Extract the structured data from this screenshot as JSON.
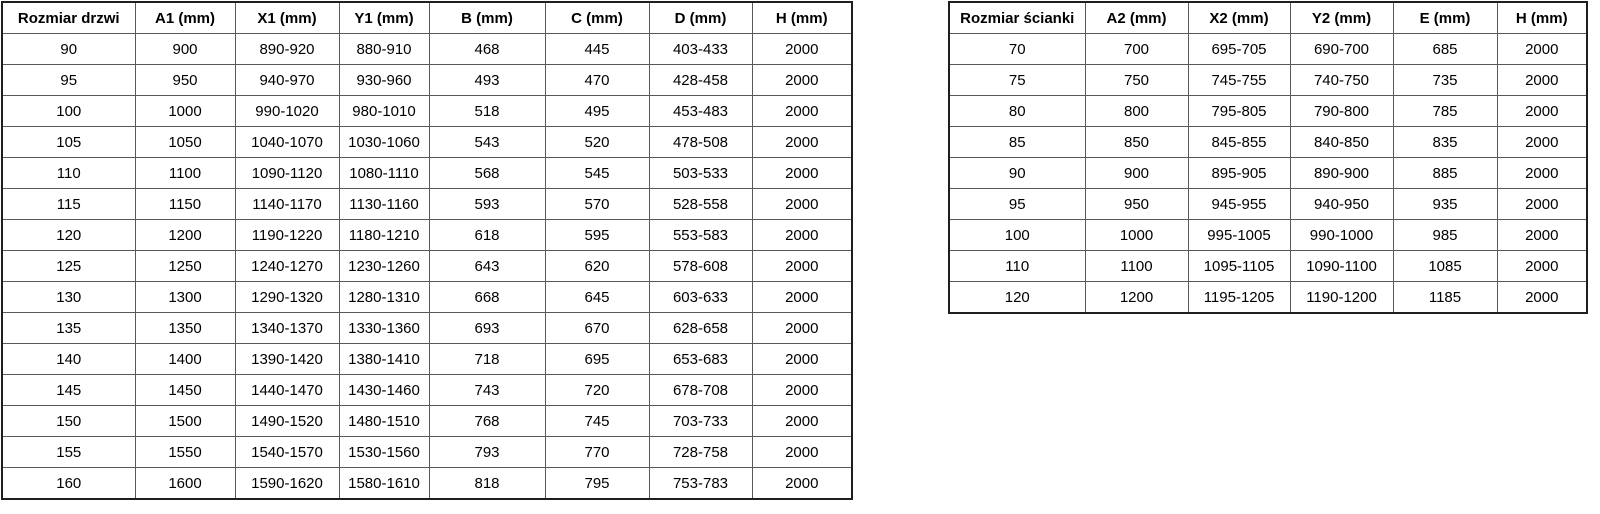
{
  "chart_data": [
    {
      "type": "table",
      "name": "door-sizes",
      "columns": [
        "Rozmiar drzwi",
        "A1 (mm)",
        "X1 (mm)",
        "Y1 (mm)",
        "B (mm)",
        "C (mm)",
        "D (mm)",
        "H (mm)"
      ],
      "rows": [
        [
          "90",
          "900",
          "890-920",
          "880-910",
          "468",
          "445",
          "403-433",
          "2000"
        ],
        [
          "95",
          "950",
          "940-970",
          "930-960",
          "493",
          "470",
          "428-458",
          "2000"
        ],
        [
          "100",
          "1000",
          "990-1020",
          "980-1010",
          "518",
          "495",
          "453-483",
          "2000"
        ],
        [
          "105",
          "1050",
          "1040-1070",
          "1030-1060",
          "543",
          "520",
          "478-508",
          "2000"
        ],
        [
          "110",
          "1100",
          "1090-1120",
          "1080-1110",
          "568",
          "545",
          "503-533",
          "2000"
        ],
        [
          "115",
          "1150",
          "1140-1170",
          "1130-1160",
          "593",
          "570",
          "528-558",
          "2000"
        ],
        [
          "120",
          "1200",
          "1190-1220",
          "1180-1210",
          "618",
          "595",
          "553-583",
          "2000"
        ],
        [
          "125",
          "1250",
          "1240-1270",
          "1230-1260",
          "643",
          "620",
          "578-608",
          "2000"
        ],
        [
          "130",
          "1300",
          "1290-1320",
          "1280-1310",
          "668",
          "645",
          "603-633",
          "2000"
        ],
        [
          "135",
          "1350",
          "1340-1370",
          "1330-1360",
          "693",
          "670",
          "628-658",
          "2000"
        ],
        [
          "140",
          "1400",
          "1390-1420",
          "1380-1410",
          "718",
          "695",
          "653-683",
          "2000"
        ],
        [
          "145",
          "1450",
          "1440-1470",
          "1430-1460",
          "743",
          "720",
          "678-708",
          "2000"
        ],
        [
          "150",
          "1500",
          "1490-1520",
          "1480-1510",
          "768",
          "745",
          "703-733",
          "2000"
        ],
        [
          "155",
          "1550",
          "1540-1570",
          "1530-1560",
          "793",
          "770",
          "728-758",
          "2000"
        ],
        [
          "160",
          "1600",
          "1590-1620",
          "1580-1610",
          "818",
          "795",
          "753-783",
          "2000"
        ]
      ]
    },
    {
      "type": "table",
      "name": "wall-sizes",
      "columns": [
        "Rozmiar ścianki",
        "A2 (mm)",
        "X2 (mm)",
        "Y2 (mm)",
        "E (mm)",
        "H (mm)"
      ],
      "rows": [
        [
          "70",
          "700",
          "695-705",
          "690-700",
          "685",
          "2000"
        ],
        [
          "75",
          "750",
          "745-755",
          "740-750",
          "735",
          "2000"
        ],
        [
          "80",
          "800",
          "795-805",
          "790-800",
          "785",
          "2000"
        ],
        [
          "85",
          "850",
          "845-855",
          "840-850",
          "835",
          "2000"
        ],
        [
          "90",
          "900",
          "895-905",
          "890-900",
          "885",
          "2000"
        ],
        [
          "95",
          "950",
          "945-955",
          "940-950",
          "935",
          "2000"
        ],
        [
          "100",
          "1000",
          "995-1005",
          "990-1000",
          "985",
          "2000"
        ],
        [
          "110",
          "1100",
          "1095-1105",
          "1090-1100",
          "1085",
          "2000"
        ],
        [
          "120",
          "1200",
          "1195-1205",
          "1190-1200",
          "1185",
          "2000"
        ]
      ]
    }
  ],
  "colors": {
    "border_outer": "#1f1f1f",
    "border_inner": "#595959",
    "text": "#000000",
    "background": "#ffffff"
  }
}
